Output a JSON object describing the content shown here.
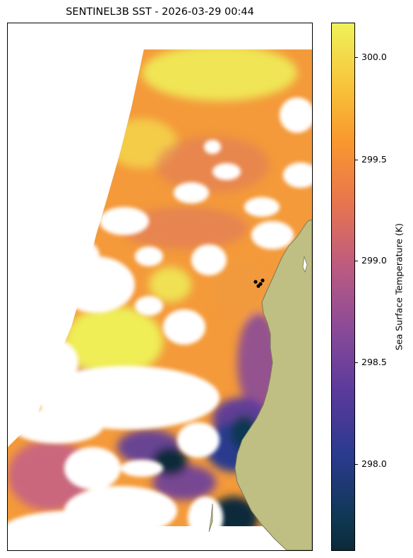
{
  "title": "SENTINEL3B SST - 2026-03-29 00:44",
  "colorbar": {
    "label": "Sea Surface Temperature (K)",
    "ticks": [
      "300.0",
      "299.5",
      "299.0",
      "298.5",
      "298.0"
    ],
    "range": [
      297.6,
      300.2
    ]
  },
  "colors": {
    "land": "#bfbf84",
    "coast": "#7a7a5a",
    "high": "#eef25a",
    "mid": "#f9992e",
    "low": "#0b2a3a",
    "markers": "#000000"
  },
  "markers_count": 4
}
